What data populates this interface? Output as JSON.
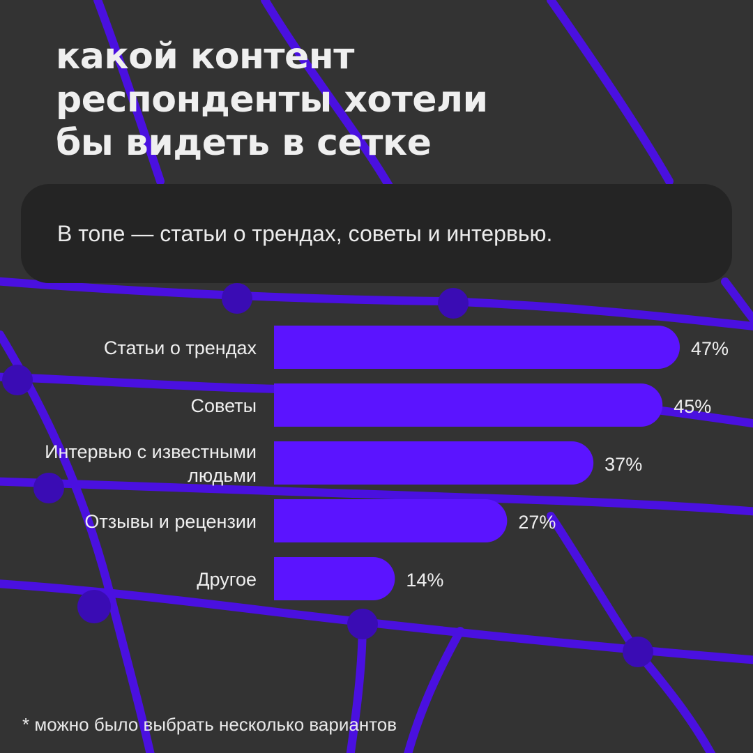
{
  "title_lines": [
    "какой контент",
    "респонденты хотели",
    "бы видеть в сетке"
  ],
  "callout": "В топе — статьи о трендах, советы и интервью.",
  "footnote": "* можно было выбрать несколько вариантов",
  "colors": {
    "background": "#333333",
    "bar": "#5b14ff",
    "net": "#4a10e0",
    "panel": "#242424",
    "text": "#efefef"
  },
  "chart_data": {
    "type": "bar",
    "orientation": "horizontal",
    "categories": [
      [
        "Статьи о трендах"
      ],
      [
        "Советы"
      ],
      [
        "Интервью с известными",
        "людьми"
      ],
      [
        "Отзывы и рецензии"
      ],
      [
        "Другое"
      ]
    ],
    "values": [
      47,
      45,
      37,
      27,
      14
    ],
    "value_labels": [
      "47%",
      "45%",
      "37%",
      "27%",
      "14%"
    ],
    "unit": "%",
    "xlim": [
      0,
      47
    ]
  }
}
